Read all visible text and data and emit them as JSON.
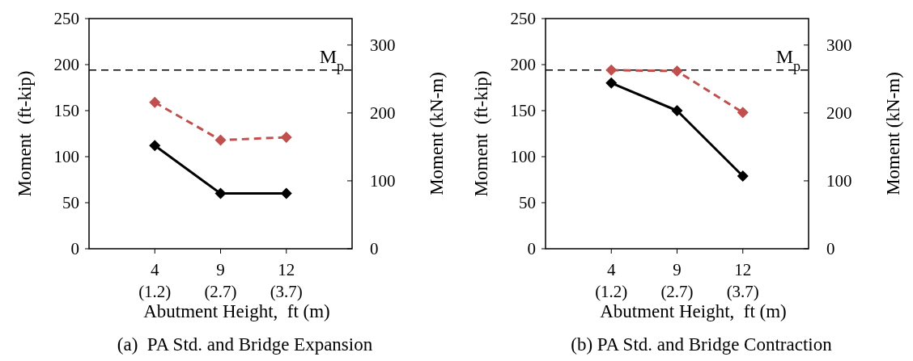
{
  "chart_data": [
    {
      "type": "line",
      "title": "(a)  PA Std. and Bridge Expansion",
      "xlabel": "Abutment Height,  ft (m)",
      "ylabel": "Moment  (ft-kip)",
      "y2label": "Moment (kN-m)",
      "categories": [
        "4 (1.2)",
        "9 (2.7)",
        "12 (3.7)"
      ],
      "series": [
        {
          "color": "#000000",
          "values": [
            112,
            60,
            60
          ],
          "line_style": "solid"
        },
        {
          "color": "#c0504d",
          "values": [
            159,
            118,
            121
          ],
          "line_style": "dashed"
        }
      ],
      "marker": "diamond",
      "ylim": [
        0,
        250
      ],
      "yticks": [
        0,
        50,
        100,
        150,
        200,
        250
      ],
      "y2lim": [
        0,
        339
      ],
      "y2ticks": [
        0,
        100,
        200,
        300
      ],
      "ref_lines": [
        {
          "axis": "y",
          "value": 194,
          "label": "M$_{p}$",
          "color": "#000000",
          "line_style": "dashed"
        }
      ]
    },
    {
      "type": "line",
      "title": "(b) PA Std. and Bridge Contraction",
      "xlabel": "Abutment Height,  ft (m)",
      "ylabel": "Moment  (ft-kip)",
      "y2label": "Moment (kN-m)",
      "categories": [
        "4 (1.2)",
        "9 (2.7)",
        "12 (3.7)"
      ],
      "series": [
        {
          "color": "#000000",
          "values": [
            180,
            150,
            79
          ],
          "line_style": "solid"
        },
        {
          "color": "#c0504d",
          "values": [
            194,
            193,
            148
          ],
          "line_style": "dashed"
        }
      ],
      "marker": "diamond",
      "ylim": [
        0,
        250
      ],
      "yticks": [
        0,
        50,
        100,
        150,
        200,
        250
      ],
      "y2lim": [
        0,
        339
      ],
      "y2ticks": [
        0,
        100,
        200,
        300
      ],
      "ref_lines": [
        {
          "axis": "y",
          "value": 194,
          "label": "M$_{p}$",
          "color": "#000000",
          "line_style": "dashed"
        }
      ]
    }
  ]
}
